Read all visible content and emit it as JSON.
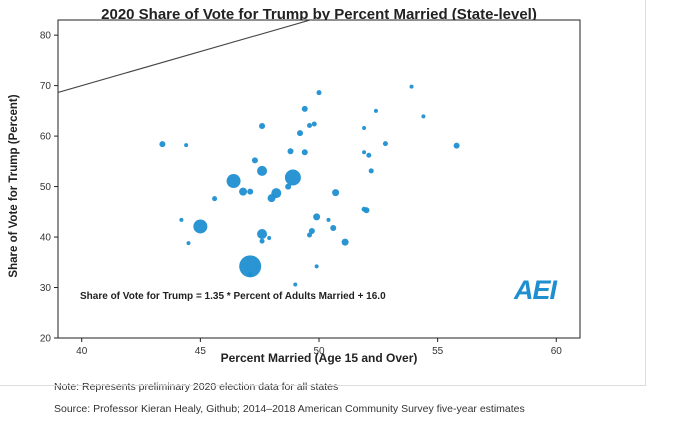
{
  "chart_data": {
    "type": "scatter",
    "title": "2020 Share of Vote for Trump by Percent Married (State-level)",
    "xlabel": "Percent Married (Age 15 and Over)",
    "ylabel": "Share of Vote for Trump (Percent)",
    "xlim": [
      39,
      61
    ],
    "ylim": [
      20,
      83
    ],
    "x_ticks": [
      40,
      45,
      50,
      55,
      60
    ],
    "y_ticks": [
      20,
      30,
      40,
      50,
      60,
      70,
      80
    ],
    "grid": false,
    "regression": {
      "equation": "Share of Vote for Trump = 1.35 * Percent of Adults Married + 16.0",
      "slope": 1.35,
      "intercept": 16.0
    },
    "points": [
      {
        "x": 43.4,
        "y": 58.4,
        "size": 3
      },
      {
        "x": 44.4,
        "y": 58.2,
        "size": 2
      },
      {
        "x": 44.2,
        "y": 43.4,
        "size": 2
      },
      {
        "x": 44.5,
        "y": 38.8,
        "size": 2
      },
      {
        "x": 45.0,
        "y": 42.1,
        "size": 7
      },
      {
        "x": 45.6,
        "y": 47.6,
        "size": 2.5
      },
      {
        "x": 46.4,
        "y": 51.1,
        "size": 7
      },
      {
        "x": 46.8,
        "y": 49.0,
        "size": 4
      },
      {
        "x": 47.1,
        "y": 49.0,
        "size": 3
      },
      {
        "x": 47.3,
        "y": 55.2,
        "size": 3
      },
      {
        "x": 47.6,
        "y": 53.1,
        "size": 5
      },
      {
        "x": 47.6,
        "y": 62.0,
        "size": 3
      },
      {
        "x": 47.6,
        "y": 40.6,
        "size": 5
      },
      {
        "x": 47.6,
        "y": 39.2,
        "size": 2.5
      },
      {
        "x": 47.9,
        "y": 39.8,
        "size": 2
      },
      {
        "x": 47.1,
        "y": 34.2,
        "size": 11
      },
      {
        "x": 47.1,
        "y": 32.6,
        "size": 2.5
      },
      {
        "x": 48.0,
        "y": 47.7,
        "size": 4
      },
      {
        "x": 48.2,
        "y": 48.7,
        "size": 5
      },
      {
        "x": 48.7,
        "y": 50.0,
        "size": 3
      },
      {
        "x": 48.9,
        "y": 51.8,
        "size": 8
      },
      {
        "x": 48.8,
        "y": 57.0,
        "size": 3
      },
      {
        "x": 49.0,
        "y": 30.6,
        "size": 2
      },
      {
        "x": 49.2,
        "y": 60.6,
        "size": 3
      },
      {
        "x": 49.4,
        "y": 65.4,
        "size": 3
      },
      {
        "x": 49.4,
        "y": 56.8,
        "size": 3
      },
      {
        "x": 49.6,
        "y": 62.1,
        "size": 2.5
      },
      {
        "x": 49.8,
        "y": 62.4,
        "size": 2.5
      },
      {
        "x": 49.6,
        "y": 40.4,
        "size": 2.5
      },
      {
        "x": 49.7,
        "y": 41.2,
        "size": 3
      },
      {
        "x": 49.9,
        "y": 34.2,
        "size": 2
      },
      {
        "x": 50.0,
        "y": 68.6,
        "size": 2.5
      },
      {
        "x": 49.9,
        "y": 44.0,
        "size": 3.5
      },
      {
        "x": 50.4,
        "y": 43.4,
        "size": 2
      },
      {
        "x": 50.6,
        "y": 41.8,
        "size": 3
      },
      {
        "x": 50.7,
        "y": 48.8,
        "size": 3.5
      },
      {
        "x": 51.1,
        "y": 39.0,
        "size": 3.5
      },
      {
        "x": 51.9,
        "y": 61.6,
        "size": 2
      },
      {
        "x": 51.9,
        "y": 56.8,
        "size": 2
      },
      {
        "x": 51.9,
        "y": 45.5,
        "size": 2.5
      },
      {
        "x": 52.0,
        "y": 45.3,
        "size": 3
      },
      {
        "x": 52.1,
        "y": 56.2,
        "size": 2.5
      },
      {
        "x": 52.2,
        "y": 53.1,
        "size": 2.5
      },
      {
        "x": 52.4,
        "y": 65.0,
        "size": 2
      },
      {
        "x": 52.8,
        "y": 58.5,
        "size": 2.5
      },
      {
        "x": 53.9,
        "y": 69.8,
        "size": 2
      },
      {
        "x": 54.4,
        "y": 63.9,
        "size": 2
      },
      {
        "x": 55.8,
        "y": 58.1,
        "size": 3
      }
    ],
    "colors": {
      "point": "#1f8fd0",
      "line": "#444444"
    }
  },
  "logo_text": "AEI",
  "logo_color": "#1f8fd0",
  "footer": {
    "note": "Note: Represents preliminary 2020 election data for all states",
    "source": "Source: Professor Kieran Healy, Github; 2014–2018 American Community Survey five-year estimates"
  }
}
